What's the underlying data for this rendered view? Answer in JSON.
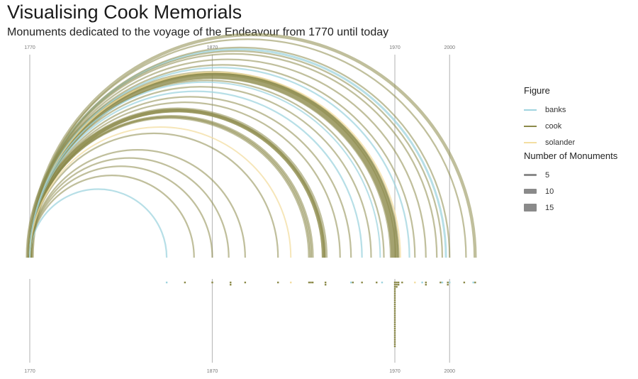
{
  "header": {
    "title": "Visualising Cook Memorials",
    "subtitle": "Monuments dedicated to the voyage of the Endeavour from 1770 until today"
  },
  "legend": {
    "figure_title": "Figure",
    "figures": [
      {
        "name": "banks",
        "color": "#9fd4df"
      },
      {
        "name": "cook",
        "color": "#8c8a4a"
      },
      {
        "name": "solander",
        "color": "#f3dea1"
      }
    ],
    "size_title": "Number of Monuments",
    "sizes": [
      {
        "label": "5",
        "value": 5
      },
      {
        "label": "10",
        "value": 10
      },
      {
        "label": "15",
        "value": 15
      }
    ]
  },
  "chart_data": {
    "type": "arc",
    "x_ticks": [
      {
        "year": 1770,
        "label": "1770"
      },
      {
        "year": 1870,
        "label": "1870"
      },
      {
        "year": 1970,
        "label": "1970"
      },
      {
        "year": 2000,
        "label": "2000"
      }
    ],
    "x_range": [
      1770,
      2015
    ],
    "origin_year": 1770,
    "arcs": [
      {
        "end_year": 1845,
        "figure": "banks",
        "count": 3
      },
      {
        "end_year": 1860,
        "figure": "cook",
        "count": 3
      },
      {
        "end_year": 1870,
        "figure": "cook",
        "count": 3
      },
      {
        "end_year": 1879,
        "figure": "cook",
        "count": 3
      },
      {
        "end_year": 1888,
        "figure": "cook",
        "count": 3
      },
      {
        "end_year": 1906,
        "figure": "cook",
        "count": 3
      },
      {
        "end_year": 1913,
        "figure": "solander",
        "count": 2
      },
      {
        "end_year": 1923,
        "figure": "cook",
        "count": 4
      },
      {
        "end_year": 1924,
        "figure": "cook",
        "count": 4
      },
      {
        "end_year": 1925,
        "figure": "cook",
        "count": 4
      },
      {
        "end_year": 1931,
        "figure": "cook",
        "count": 7
      },
      {
        "end_year": 1931,
        "figure": "cook",
        "count": 7
      },
      {
        "end_year": 1932,
        "figure": "cook",
        "count": 8
      },
      {
        "end_year": 1940,
        "figure": "cook",
        "count": 3
      },
      {
        "end_year": 1946,
        "figure": "cook",
        "count": 3
      },
      {
        "end_year": 1952,
        "figure": "banks",
        "count": 3
      },
      {
        "end_year": 1957,
        "figure": "cook",
        "count": 3
      },
      {
        "end_year": 1962,
        "figure": "banks",
        "count": 2
      },
      {
        "end_year": 1964,
        "figure": "cook",
        "count": 3
      },
      {
        "end_year": 1969,
        "figure": "cook",
        "count": 12
      },
      {
        "end_year": 1970,
        "figure": "cook",
        "count": 15
      },
      {
        "end_year": 1971,
        "figure": "cook",
        "count": 6
      },
      {
        "end_year": 1972,
        "figure": "cook",
        "count": 4
      },
      {
        "end_year": 1973,
        "figure": "solander",
        "count": 3
      },
      {
        "end_year": 1978,
        "figure": "banks",
        "count": 3
      },
      {
        "end_year": 1981,
        "figure": "cook",
        "count": 3
      },
      {
        "end_year": 1987,
        "figure": "cook",
        "count": 3
      },
      {
        "end_year": 1993,
        "figure": "cook",
        "count": 3
      },
      {
        "end_year": 1996,
        "figure": "cook",
        "count": 3
      },
      {
        "end_year": 1998,
        "figure": "banks",
        "count": 4
      },
      {
        "end_year": 2000,
        "figure": "cook",
        "count": 3
      },
      {
        "end_year": 2009,
        "figure": "cook",
        "count": 3
      },
      {
        "end_year": 2014,
        "figure": "cook",
        "count": 6
      }
    ],
    "dots": [
      {
        "year": 1845,
        "figure": "banks",
        "count": 1
      },
      {
        "year": 1855,
        "figure": "cook",
        "count": 1
      },
      {
        "year": 1870,
        "figure": "cook",
        "count": 1
      },
      {
        "year": 1880,
        "figure": "cook",
        "count": 2
      },
      {
        "year": 1888,
        "figure": "cook",
        "count": 1
      },
      {
        "year": 1906,
        "figure": "cook",
        "count": 1
      },
      {
        "year": 1913,
        "figure": "solander",
        "count": 1
      },
      {
        "year": 1923,
        "figure": "cook",
        "count": 1
      },
      {
        "year": 1924,
        "figure": "cook",
        "count": 1
      },
      {
        "year": 1925,
        "figure": "cook",
        "count": 1
      },
      {
        "year": 1932,
        "figure": "cook",
        "count": 2
      },
      {
        "year": 1946,
        "figure": "banks",
        "count": 1
      },
      {
        "year": 1947,
        "figure": "cook",
        "count": 1
      },
      {
        "year": 1952,
        "figure": "cook",
        "count": 1
      },
      {
        "year": 1960,
        "figure": "cook",
        "count": 1
      },
      {
        "year": 1963,
        "figure": "banks",
        "count": 1
      },
      {
        "year": 1970,
        "figure": "cook",
        "count": 30
      },
      {
        "year": 1971,
        "figure": "cook",
        "count": 3
      },
      {
        "year": 1972,
        "figure": "cook",
        "count": 2
      },
      {
        "year": 1974,
        "figure": "cook",
        "count": 1
      },
      {
        "year": 1981,
        "figure": "solander",
        "count": 1
      },
      {
        "year": 1985,
        "figure": "banks",
        "count": 1
      },
      {
        "year": 1987,
        "figure": "cook",
        "count": 2
      },
      {
        "year": 1995,
        "figure": "cook",
        "count": 1
      },
      {
        "year": 1996,
        "figure": "banks",
        "count": 1
      },
      {
        "year": 1999,
        "figure": "cook",
        "count": 2
      },
      {
        "year": 2000,
        "figure": "banks",
        "count": 1
      },
      {
        "year": 2008,
        "figure": "cook",
        "count": 1
      },
      {
        "year": 2013,
        "figure": "banks",
        "count": 1
      },
      {
        "year": 2014,
        "figure": "cook",
        "count": 1
      }
    ]
  }
}
